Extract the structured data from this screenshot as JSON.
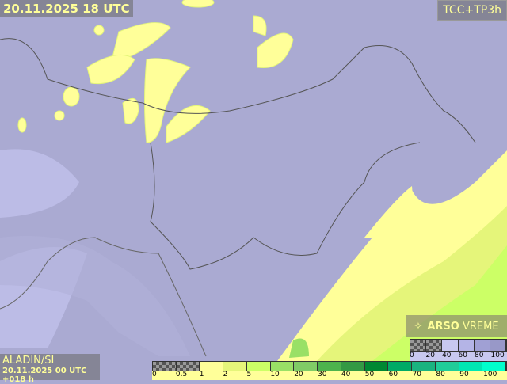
{
  "header": {
    "date": "20.11.2025 18 UTC",
    "product": "TCC+TP3h"
  },
  "model": {
    "name": "ALADIN/SI",
    "run": "20.11.2025 00 UTC +018 h"
  },
  "logo": {
    "text_bold": "ARSO",
    "text": "VREME",
    "icon": "satellite-dish-icon"
  },
  "precip_legend": {
    "labels": [
      "0",
      "0.5",
      "1",
      "2",
      "5",
      "10",
      "20",
      "30",
      "40",
      "50",
      "60",
      "70",
      "80",
      "90",
      "100"
    ],
    "colors": [
      "checker",
      "checker",
      "#ffff99",
      "#e5f57a",
      "#ccff66",
      "#99e066",
      "#80cc66",
      "#4db34d",
      "#339944",
      "#008833",
      "#00aa66",
      "#1ab380",
      "#20cc99",
      "#00e6b3",
      "#00ffcc"
    ]
  },
  "cloud_legend": {
    "labels": [
      "0",
      "20",
      "40",
      "60",
      "80",
      "100"
    ],
    "colors": [
      "checker",
      "checker",
      "#c8c8f0",
      "#b4b4e6",
      "#a0a0d4",
      "#9898c8"
    ]
  }
}
